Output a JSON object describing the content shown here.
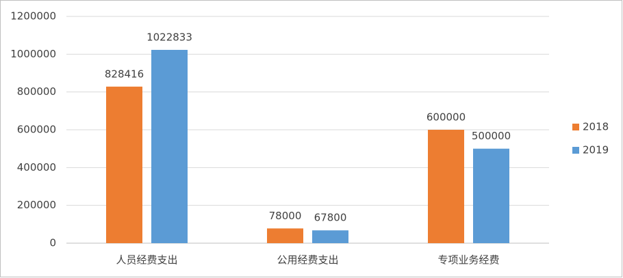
{
  "chart_data": {
    "type": "bar",
    "categories": [
      "人员经费支出",
      "公用经费支出",
      "专项业务经费"
    ],
    "series": [
      {
        "name": "2018",
        "color": "#ed7d31",
        "values": [
          828416,
          78000,
          600000
        ]
      },
      {
        "name": "2019",
        "color": "#5b9bd5",
        "values": [
          1022833,
          67800,
          500000
        ]
      }
    ],
    "ylim": [
      0,
      1200000
    ],
    "yticks": [
      0,
      200000,
      400000,
      600000,
      800000,
      1000000,
      1200000
    ],
    "grid": true,
    "legend": "right",
    "data_labels": true
  }
}
